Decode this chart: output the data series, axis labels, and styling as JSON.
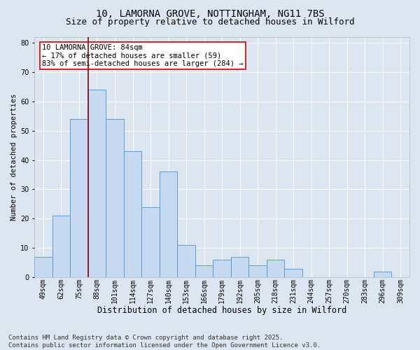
{
  "title1": "10, LAMORNA GROVE, NOTTINGHAM, NG11 7BS",
  "title2": "Size of property relative to detached houses in Wilford",
  "xlabel": "Distribution of detached houses by size in Wilford",
  "ylabel": "Number of detached properties",
  "categories": [
    "49sqm",
    "62sqm",
    "75sqm",
    "88sqm",
    "101sqm",
    "114sqm",
    "127sqm",
    "140sqm",
    "153sqm",
    "166sqm",
    "179sqm",
    "192sqm",
    "205sqm",
    "218sqm",
    "231sqm",
    "244sqm",
    "257sqm",
    "270sqm",
    "283sqm",
    "296sqm",
    "309sqm"
  ],
  "values": [
    7,
    21,
    54,
    64,
    54,
    43,
    24,
    36,
    11,
    4,
    6,
    7,
    4,
    6,
    3,
    0,
    0,
    0,
    0,
    2,
    0
  ],
  "bar_color": "#c5d9f0",
  "bar_edge_color": "#5b9bd5",
  "vline_x_index": 2.5,
  "vline_color": "#8b0000",
  "annotation_text": "10 LAMORNA GROVE: 84sqm\n← 17% of detached houses are smaller (59)\n83% of semi-detached houses are larger (284) →",
  "annotation_box_color": "#ffffff",
  "annotation_box_edge": "#cc0000",
  "bg_color": "#dce6f1",
  "plot_bg_color": "#dce6f1",
  "footer_text": "Contains HM Land Registry data © Crown copyright and database right 2025.\nContains public sector information licensed under the Open Government Licence v3.0.",
  "ylim": [
    0,
    82
  ],
  "yticks": [
    0,
    10,
    20,
    30,
    40,
    50,
    60,
    70,
    80
  ],
  "title1_fontsize": 10,
  "title2_fontsize": 9,
  "xlabel_fontsize": 8.5,
  "ylabel_fontsize": 7.5,
  "tick_fontsize": 7,
  "footer_fontsize": 6.5,
  "annot_fontsize": 7.5
}
